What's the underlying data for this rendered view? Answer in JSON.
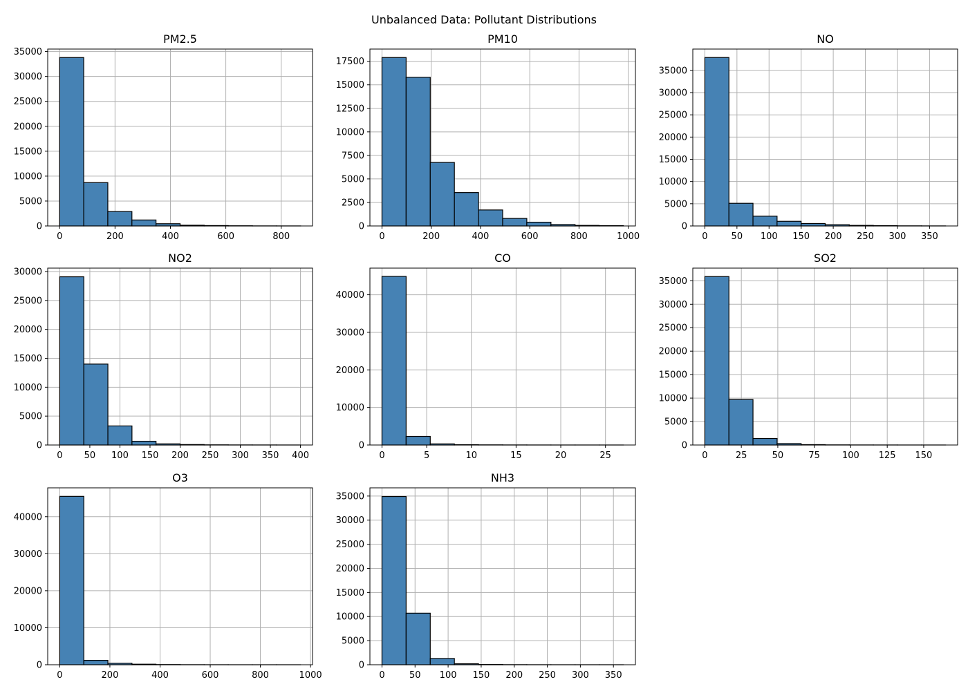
{
  "figure": {
    "title": "Unbalanced Data: Pollutant Distributions"
  },
  "chart_data": [
    {
      "type": "bar",
      "title": "PM2.5",
      "bin_edges": [
        0,
        87,
        174,
        261,
        348,
        435,
        522,
        609,
        696,
        783,
        870
      ],
      "values": [
        33800,
        8700,
        2900,
        1200,
        450,
        150,
        80,
        40,
        15,
        10
      ],
      "xlim": [
        -43,
        913
      ],
      "ylim": [
        0,
        35500
      ],
      "xticks": [
        0,
        200,
        400,
        600,
        800
      ],
      "yticks": [
        0,
        5000,
        10000,
        15000,
        20000,
        25000,
        30000,
        35000
      ],
      "grid": true
    },
    {
      "type": "bar",
      "title": "PM10",
      "bin_edges": [
        0,
        98,
        196,
        294,
        392,
        490,
        588,
        686,
        784,
        882,
        980
      ],
      "values": [
        17900,
        15800,
        6750,
        3550,
        1700,
        800,
        400,
        150,
        60,
        30
      ],
      "xlim": [
        -49,
        1029
      ],
      "ylim": [
        0,
        18800
      ],
      "xticks": [
        0,
        200,
        400,
        600,
        800,
        1000
      ],
      "yticks": [
        0,
        2500,
        5000,
        7500,
        10000,
        12500,
        15000,
        17500
      ],
      "grid": true
    },
    {
      "type": "bar",
      "title": "NO",
      "bin_edges": [
        0,
        37.5,
        75,
        112.5,
        150,
        187.5,
        225,
        262.5,
        300,
        337.5,
        375
      ],
      "values": [
        37900,
        5100,
        2200,
        1050,
        550,
        280,
        130,
        70,
        30,
        15
      ],
      "xlim": [
        -18.75,
        393.75
      ],
      "ylim": [
        0,
        39800
      ],
      "xticks": [
        0,
        50,
        100,
        150,
        200,
        250,
        300,
        350
      ],
      "yticks": [
        0,
        5000,
        10000,
        15000,
        20000,
        25000,
        30000,
        35000
      ],
      "grid": true
    },
    {
      "type": "bar",
      "title": "NO2",
      "bin_edges": [
        0,
        40,
        80,
        120,
        160,
        200,
        240,
        280,
        320,
        360,
        400
      ],
      "values": [
        29100,
        14000,
        3300,
        650,
        200,
        80,
        30,
        15,
        10,
        5
      ],
      "xlim": [
        -20,
        420
      ],
      "ylim": [
        0,
        30600
      ],
      "xticks": [
        0,
        50,
        100,
        150,
        200,
        250,
        300,
        350,
        400
      ],
      "yticks": [
        0,
        5000,
        10000,
        15000,
        20000,
        25000,
        30000
      ],
      "grid": true
    },
    {
      "type": "bar",
      "title": "CO",
      "bin_edges": [
        0,
        2.7,
        5.4,
        8.1,
        10.8,
        13.5,
        16.2,
        18.9,
        21.6,
        24.3,
        27
      ],
      "values": [
        44900,
        2300,
        300,
        80,
        40,
        20,
        10,
        5,
        5,
        5
      ],
      "xlim": [
        -1.35,
        28.35
      ],
      "ylim": [
        0,
        47100
      ],
      "xticks": [
        0,
        5,
        10,
        15,
        20,
        25
      ],
      "yticks": [
        0,
        10000,
        20000,
        30000,
        40000
      ],
      "grid": true
    },
    {
      "type": "bar",
      "title": "SO2",
      "bin_edges": [
        0,
        16.5,
        33,
        49.5,
        66,
        82.5,
        99,
        115.5,
        132,
        148.5,
        165
      ],
      "values": [
        35900,
        9700,
        1400,
        300,
        80,
        30,
        15,
        10,
        5,
        5
      ],
      "xlim": [
        -8.25,
        173.25
      ],
      "ylim": [
        0,
        37700
      ],
      "xticks": [
        0,
        25,
        50,
        75,
        100,
        125,
        150
      ],
      "yticks": [
        0,
        5000,
        10000,
        15000,
        20000,
        25000,
        30000,
        35000
      ],
      "grid": true
    },
    {
      "type": "bar",
      "title": "O3",
      "bin_edges": [
        0,
        96,
        192,
        288,
        384,
        480,
        576,
        672,
        768,
        864,
        960
      ],
      "values": [
        45500,
        1200,
        400,
        150,
        50,
        20,
        10,
        5,
        5,
        5
      ],
      "xlim": [
        -48,
        1008
      ],
      "ylim": [
        0,
        47800
      ],
      "xticks": [
        0,
        200,
        400,
        600,
        800,
        1000
      ],
      "yticks": [
        0,
        10000,
        20000,
        30000,
        40000
      ],
      "grid": true
    },
    {
      "type": "bar",
      "title": "NH3",
      "bin_edges": [
        0,
        36.5,
        73,
        109.5,
        146,
        182.5,
        219,
        255.5,
        292,
        328.5,
        365
      ],
      "values": [
        34900,
        10700,
        1300,
        200,
        50,
        20,
        10,
        5,
        5,
        5
      ],
      "xlim": [
        -18.25,
        383.25
      ],
      "ylim": [
        0,
        36700
      ],
      "xticks": [
        0,
        50,
        100,
        150,
        200,
        250,
        300,
        350
      ],
      "yticks": [
        0,
        5000,
        10000,
        15000,
        20000,
        25000,
        30000,
        35000
      ],
      "grid": true
    }
  ]
}
